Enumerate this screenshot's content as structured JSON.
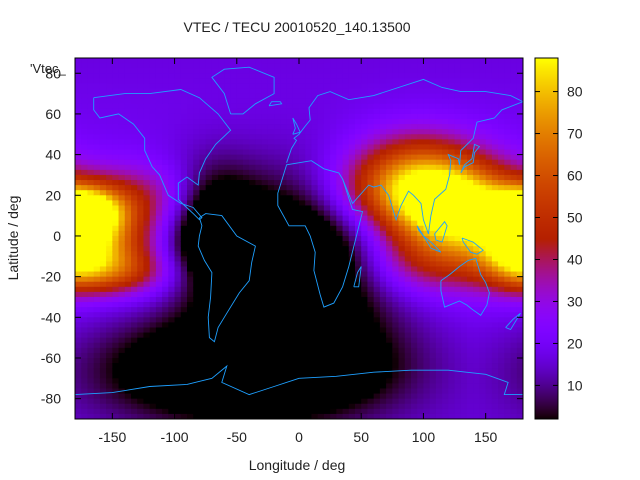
{
  "chart_data": {
    "type": "heatmap",
    "title": "VTEC / TECU 20010520_140.13500",
    "xlabel": "Longitude / deg",
    "ylabel": "Latitude / deg",
    "key_label": "'Vtec_",
    "xlim": [
      -180,
      180
    ],
    "ylim": [
      -90,
      87.5
    ],
    "x_ticks": [
      -150,
      -100,
      -50,
      0,
      50,
      100,
      150
    ],
    "y_ticks": [
      -80,
      -60,
      -40,
      -20,
      0,
      20,
      40,
      60,
      80
    ],
    "colorbar": {
      "range": [
        2,
        88
      ],
      "ticks": [
        10,
        20,
        30,
        40,
        50,
        60,
        70,
        80
      ]
    },
    "grid": false,
    "features": [
      {
        "lon": -175,
        "lat": 12,
        "value": 86,
        "sx": 22,
        "sy": 8
      },
      {
        "lon": -165,
        "lat": -5,
        "value": 68,
        "sx": 30,
        "sy": 12
      },
      {
        "lon": -140,
        "lat": 18,
        "value": 46,
        "sx": 50,
        "sy": 12
      },
      {
        "lon": -150,
        "lat": -18,
        "value": 48,
        "sx": 35,
        "sy": 8
      },
      {
        "lon": 110,
        "lat": 15,
        "value": 68,
        "sx": 30,
        "sy": 13
      },
      {
        "lon": 95,
        "lat": 30,
        "value": 60,
        "sx": 35,
        "sy": 15
      },
      {
        "lon": 140,
        "lat": 8,
        "value": 58,
        "sx": 30,
        "sy": 18
      },
      {
        "lon": 175,
        "lat": -5,
        "value": 55,
        "sx": 18,
        "sy": 12
      },
      {
        "lon": 95,
        "lat": -12,
        "value": 45,
        "sx": 35,
        "sy": 12
      },
      {
        "lon": 60,
        "lat": 20,
        "value": 42,
        "sx": 35,
        "sy": 14
      },
      {
        "lon": 0,
        "lat": -10,
        "value": -16,
        "sx": 55,
        "sy": 28
      },
      {
        "lon": -40,
        "lat": -65,
        "value": -18,
        "sx": 80,
        "sy": 18
      },
      {
        "lon": -70,
        "lat": 5,
        "value": -10,
        "sx": 25,
        "sy": 20
      }
    ]
  }
}
